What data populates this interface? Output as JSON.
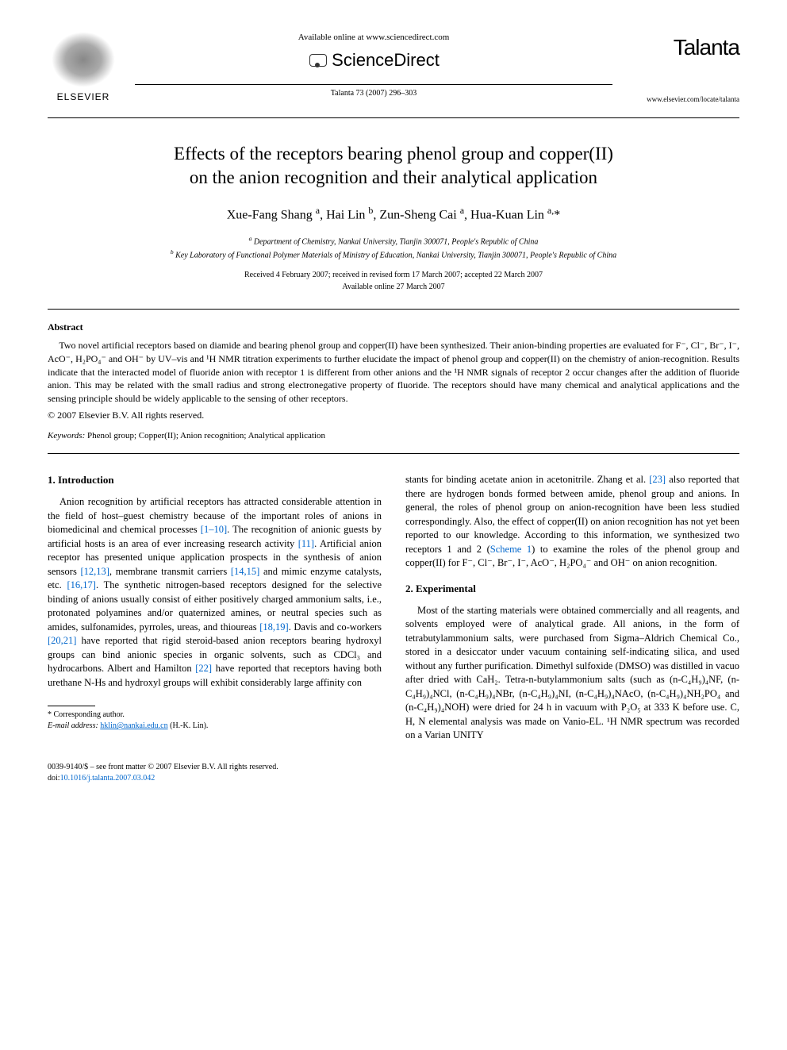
{
  "header": {
    "publisher_label": "ELSEVIER",
    "available_online": "Available online at www.sciencedirect.com",
    "sciencedirect": "ScienceDirect",
    "journal_ref": "Talanta 73 (2007) 296–303",
    "journal_name": "Talanta",
    "journal_url": "www.elsevier.com/locate/talanta"
  },
  "article": {
    "title_line1": "Effects of the receptors bearing phenol group and copper(II)",
    "title_line2": "on the anion recognition and their analytical application",
    "authors_html": "Xue-Fang Shang <sup>a</sup>, Hai Lin <sup>b</sup>, Zun-Sheng Cai <sup>a</sup>, Hua-Kuan Lin <sup>a,</sup>*",
    "affiliation_a": "a Department of Chemistry, Nankai University, Tianjin 300071, People's Republic of China",
    "affiliation_b": "b Key Laboratory of Functional Polymer Materials of Ministry of Education, Nankai University, Tianjin 300071, People's Republic of China",
    "received": "Received 4 February 2007; received in revised form 17 March 2007; accepted 22 March 2007",
    "available": "Available online 27 March 2007"
  },
  "abstract": {
    "heading": "Abstract",
    "text": "Two novel artificial receptors based on diamide and bearing phenol group and copper(II) have been synthesized. Their anion-binding properties are evaluated for F⁻, Cl⁻, Br⁻, I⁻, AcO⁻, H₂PO₄⁻ and OH⁻ by UV–vis and ¹H NMR titration experiments to further elucidate the impact of phenol group and copper(II) on the chemistry of anion-recognition. Results indicate that the interacted model of fluoride anion with receptor 1 is different from other anions and the ¹H NMR signals of receptor 2 occur changes after the addition of fluoride anion. This may be related with the small radius and strong electronegative property of fluoride. The receptors should have many chemical and analytical applications and the sensing principle should be widely applicable to the sensing of other receptors.",
    "copyright": "© 2007 Elsevier B.V. All rights reserved.",
    "keywords_label": "Keywords:",
    "keywords": " Phenol group; Copper(II); Anion recognition; Analytical application"
  },
  "sections": {
    "intro_heading": "1. Introduction",
    "intro_para": "Anion recognition by artificial receptors has attracted considerable attention in the field of host–guest chemistry because of the important roles of anions in biomedicinal and chemical processes [1–10]. The recognition of anionic guests by artificial hosts is an area of ever increasing research activity [11]. Artificial anion receptor has presented unique application prospects in the synthesis of anion sensors [12,13], membrane transmit carriers [14,15] and mimic enzyme catalysts, etc. [16,17]. The synthetic nitrogen-based receptors designed for the selective binding of anions usually consist of either positively charged ammonium salts, i.e., protonated polyamines and/or quaternized amines, or neutral species such as amides, sulfonamides, pyrroles, ureas, and thioureas [18,19]. Davis and co-workers [20,21] have reported that rigid steroid-based anion receptors bearing hydroxyl groups can bind anionic species in organic solvents, such as CDCl₃ and hydrocarbons. Albert and Hamilton [22] have reported that receptors having both urethane N-Hs and hydroxyl groups will exhibit considerably large affinity con",
    "col2_continuation": "stants for binding acetate anion in acetonitrile. Zhang et al. [23] also reported that there are hydrogen bonds formed between amide, phenol group and anions. In general, the roles of phenol group on anion-recognition have been less studied correspondingly. Also, the effect of copper(II) on anion recognition has not yet been reported to our knowledge. According to this information, we synthesized two receptors 1 and 2 (Scheme 1) to examine the roles of the phenol group and copper(II) for F⁻, Cl⁻, Br⁻, I⁻, AcO⁻, H₂PO₄⁻ and OH⁻ on anion recognition.",
    "exp_heading": "2. Experimental",
    "exp_para": "Most of the starting materials were obtained commercially and all reagents, and solvents employed were of analytical grade. All anions, in the form of tetrabutylammonium salts, were purchased from Sigma–Aldrich Chemical Co., stored in a desiccator under vacuum containing self-indicating silica, and used without any further purification. Dimethyl sulfoxide (DMSO) was distilled in vacuo after dried with CaH₂. Tetra-n-butylammonium salts (such as (n-C₄H₉)₄NF, (n-C₄H₉)₄NCl, (n-C₄H₉)₄NBr, (n-C₄H₉)₄NI, (n-C₄H₉)₄NAcO, (n-C₄H₉)₄NH₂PO₄ and (n-C₄H₉)₄NOH) were dried for 24 h in vacuum with P₂O₅ at 333 K before use. C, H, N elemental analysis was made on Vanio-EL. ¹H NMR spectrum was recorded on a Varian UNITY"
  },
  "footnote": {
    "corresponding": "* Corresponding author.",
    "email_label": "E-mail address: ",
    "email": "hklin@nankai.edu.cn",
    "email_suffix": " (H.-K. Lin)."
  },
  "footer": {
    "issn": "0039-9140/$ – see front matter © 2007 Elsevier B.V. All rights reserved.",
    "doi_label": "doi:",
    "doi": "10.1016/j.talanta.2007.03.042"
  },
  "style": {
    "link_color": "#0066cc",
    "text_color": "#000000",
    "background": "#ffffff"
  }
}
